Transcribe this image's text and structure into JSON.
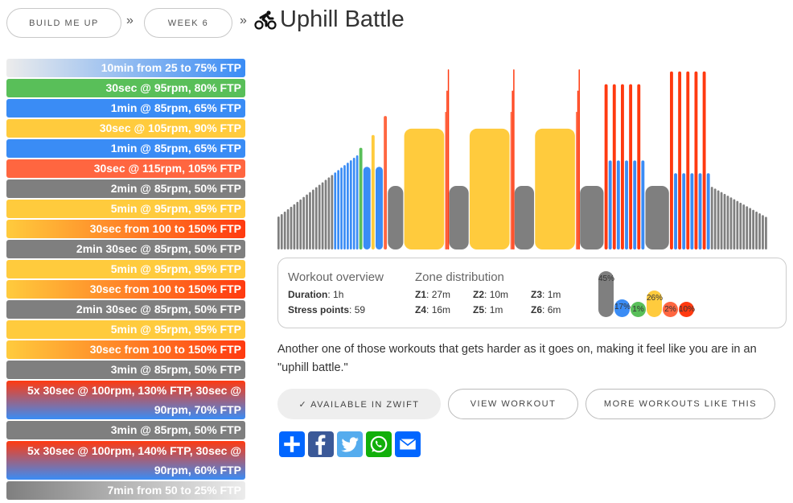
{
  "breadcrumb": [
    {
      "label": "BUILD ME UP"
    },
    {
      "label": "WEEK 6"
    }
  ],
  "separator": "»",
  "title": "Uphill Battle",
  "title_icon": "cyclist-icon",
  "colors": {
    "z1": "#7f7f7f",
    "z2": "#3a8cf5",
    "z3": "#59bf59",
    "z4": "#ffcb3d",
    "z5": "#ff6640",
    "z6": "#ff3a10"
  },
  "steps": [
    {
      "label": "10min from 25 to 75% FTP",
      "style": "warmup"
    },
    {
      "label": "30sec @ 95rpm, 80% FTP",
      "style": "z3"
    },
    {
      "label": "1min @ 85rpm, 65% FTP",
      "style": "z2"
    },
    {
      "label": "30sec @ 105rpm, 90% FTP",
      "style": "z4"
    },
    {
      "label": "1min @ 85rpm, 65% FTP",
      "style": "z2"
    },
    {
      "label": "30sec @ 115rpm, 105% FTP",
      "style": "z5"
    },
    {
      "label": "2min @ 85rpm, 50% FTP",
      "style": "z1"
    },
    {
      "label": "5min @ 95rpm, 95% FTP",
      "style": "z4"
    },
    {
      "label": "30sec from 100 to 150% FTP",
      "style": "ramp"
    },
    {
      "label": "2min 30sec @ 85rpm, 50% FTP",
      "style": "z1"
    },
    {
      "label": "5min @ 95rpm, 95% FTP",
      "style": "z4"
    },
    {
      "label": "30sec from 100 to 150% FTP",
      "style": "ramp"
    },
    {
      "label": "2min 30sec @ 85rpm, 50% FTP",
      "style": "z1"
    },
    {
      "label": "5min @ 95rpm, 95% FTP",
      "style": "z4"
    },
    {
      "label": "30sec from 100 to 150% FTP",
      "style": "ramp"
    },
    {
      "label": "3min @ 85rpm, 50% FTP",
      "style": "z1"
    },
    {
      "label": "5x 30sec @ 100rpm, 130% FTP, 30sec @ 90rpm, 70% FTP",
      "style": "interval"
    },
    {
      "label": "3min @ 85rpm, 50% FTP",
      "style": "z1"
    },
    {
      "label": "5x 30sec @ 100rpm, 140% FTP, 30sec @ 90rpm, 60% FTP",
      "style": "interval"
    },
    {
      "label": "7min from 50 to 25% FTP",
      "style": "cooldown"
    }
  ],
  "chart_data": {
    "type": "bar",
    "x_unit": "seconds",
    "y_unit": "% FTP",
    "ylim": [
      0,
      150
    ],
    "total_duration_s": 3600,
    "segments": [
      {
        "dur": 600,
        "from": 25,
        "to": 75
      },
      {
        "dur": 30,
        "power": 80
      },
      {
        "dur": 60,
        "power": 65
      },
      {
        "dur": 30,
        "power": 90
      },
      {
        "dur": 60,
        "power": 65
      },
      {
        "dur": 30,
        "power": 105
      },
      {
        "dur": 120,
        "power": 50
      },
      {
        "dur": 300,
        "power": 95
      },
      {
        "dur": 30,
        "from": 100,
        "to": 150
      },
      {
        "dur": 150,
        "power": 50
      },
      {
        "dur": 300,
        "power": 95
      },
      {
        "dur": 30,
        "from": 100,
        "to": 150
      },
      {
        "dur": 150,
        "power": 50
      },
      {
        "dur": 300,
        "power": 95
      },
      {
        "dur": 30,
        "from": 100,
        "to": 150
      },
      {
        "dur": 180,
        "power": 50
      },
      {
        "repeat": 5,
        "on": {
          "dur": 30,
          "power": 130
        },
        "off": {
          "dur": 30,
          "power": 70
        }
      },
      {
        "dur": 180,
        "power": 50
      },
      {
        "repeat": 5,
        "on": {
          "dur": 30,
          "power": 140
        },
        "off": {
          "dur": 30,
          "power": 60
        }
      },
      {
        "dur": 420,
        "from": 50,
        "to": 25
      }
    ]
  },
  "overview": {
    "heading": "Workout overview",
    "duration_label": "Duration",
    "duration": "1h",
    "stress_label": "Stress points",
    "stress": "59",
    "zone_heading": "Zone distribution",
    "zones": [
      {
        "label": "Z1",
        "value": "27m",
        "pct": 45,
        "pct_label": "45%"
      },
      {
        "label": "Z2",
        "value": "10m",
        "pct": 17,
        "pct_label": "17%"
      },
      {
        "label": "Z3",
        "value": "1m",
        "pct": 1,
        "pct_label": "1%"
      },
      {
        "label": "Z4",
        "value": "16m",
        "pct": 26,
        "pct_label": "26%"
      },
      {
        "label": "Z5",
        "value": "1m",
        "pct": 2,
        "pct_label": "2%"
      },
      {
        "label": "Z6",
        "value": "6m",
        "pct": 10,
        "pct_label": "10%"
      }
    ]
  },
  "description": "Another one of those workouts that gets harder as it goes on, making it feel like you are in an \"uphill battle.\"",
  "buttons": {
    "zwift": "✓ AVAILABLE IN ZWIFT",
    "view": "VIEW WORKOUT",
    "more": "MORE WORKOUTS LIKE THIS"
  },
  "share": [
    {
      "icon": "add-share-icon",
      "color": "#0166ff"
    },
    {
      "icon": "facebook-icon",
      "color": "#3b5998"
    },
    {
      "icon": "twitter-icon",
      "color": "#55acee"
    },
    {
      "icon": "whatsapp-icon",
      "color": "#12af0a"
    },
    {
      "icon": "email-icon",
      "color": "#0166ff"
    }
  ]
}
